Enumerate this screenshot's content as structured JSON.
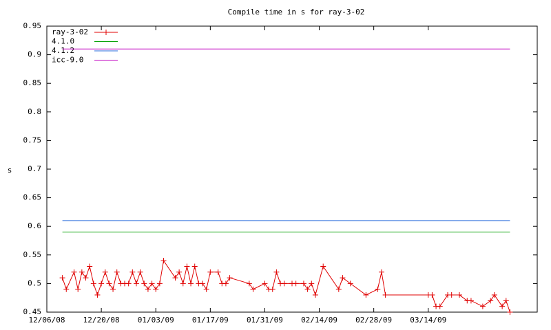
{
  "chart_data": {
    "type": "line",
    "title": "Compile time in s for ray-3-02",
    "y_label": "s",
    "xlim": [
      "12/06/08",
      "04/11/09"
    ],
    "xticks": [
      "12/06/08",
      "12/20/08",
      "01/03/09",
      "01/17/09",
      "01/31/09",
      "02/14/09",
      "02/28/09",
      "03/14/09"
    ],
    "ylim": [
      0.45,
      0.95
    ],
    "yticks": [
      0.45,
      0.5,
      0.55,
      0.6,
      0.65,
      0.7,
      0.75,
      0.8,
      0.85,
      0.9,
      0.95
    ],
    "legend": "top-left",
    "series": [
      {
        "name": "ray-3-02",
        "color": "#e00000",
        "marker": "plus",
        "x": [
          "12/10/08",
          "12/11/08",
          "12/13/08",
          "12/14/08",
          "12/15/08",
          "12/16/08",
          "12/17/08",
          "12/18/08",
          "12/19/08",
          "12/20/08",
          "12/21/08",
          "12/22/08",
          "12/23/08",
          "12/24/08",
          "12/25/08",
          "12/26/08",
          "12/27/08",
          "12/28/08",
          "12/29/08",
          "12/30/08",
          "12/31/08",
          "01/01/09",
          "01/02/09",
          "01/03/09",
          "01/04/09",
          "01/05/09",
          "01/08/09",
          "01/09/09",
          "01/10/09",
          "01/11/09",
          "01/12/09",
          "01/13/09",
          "01/14/09",
          "01/15/09",
          "01/16/09",
          "01/17/09",
          "01/19/09",
          "01/20/09",
          "01/21/09",
          "01/22/09",
          "01/27/09",
          "01/28/09",
          "01/31/09",
          "02/01/09",
          "02/02/09",
          "02/03/09",
          "02/04/09",
          "02/05/09",
          "02/07/09",
          "02/08/09",
          "02/10/09",
          "02/11/09",
          "02/12/09",
          "02/13/09",
          "02/15/09",
          "02/19/09",
          "02/20/09",
          "02/22/09",
          "02/26/09",
          "03/01/09",
          "03/02/09",
          "03/03/09",
          "03/14/09",
          "03/15/09",
          "03/16/09",
          "03/17/09",
          "03/19/09",
          "03/20/09",
          "03/22/09",
          "03/24/09",
          "03/25/09",
          "03/28/09",
          "03/30/09",
          "03/31/09",
          "04/02/09",
          "04/03/09",
          "04/04/09"
        ],
        "values": [
          0.51,
          0.49,
          0.52,
          0.49,
          0.52,
          0.51,
          0.53,
          0.5,
          0.48,
          0.5,
          0.52,
          0.5,
          0.49,
          0.52,
          0.5,
          0.5,
          0.5,
          0.52,
          0.5,
          0.52,
          0.5,
          0.49,
          0.5,
          0.49,
          0.5,
          0.54,
          0.51,
          0.52,
          0.5,
          0.53,
          0.5,
          0.53,
          0.5,
          0.5,
          0.49,
          0.52,
          0.52,
          0.5,
          0.5,
          0.51,
          0.5,
          0.49,
          0.5,
          0.49,
          0.49,
          0.52,
          0.5,
          0.5,
          0.5,
          0.5,
          0.5,
          0.49,
          0.5,
          0.48,
          0.53,
          0.49,
          0.51,
          0.5,
          0.48,
          0.49,
          0.52,
          0.48,
          0.48,
          0.48,
          0.46,
          0.46,
          0.48,
          0.48,
          0.48,
          0.47,
          0.47,
          0.46,
          0.47,
          0.48,
          0.46,
          0.47,
          0.45
        ]
      },
      {
        "name": "4.1.0",
        "color": "#00a000",
        "x": [
          "12/10/08",
          "04/04/09"
        ],
        "values": [
          0.59,
          0.59
        ]
      },
      {
        "name": "4.1.2",
        "color": "#2a6edc",
        "x": [
          "12/10/08",
          "04/04/09"
        ],
        "values": [
          0.61,
          0.61
        ]
      },
      {
        "name": "icc-9.0",
        "color": "#c000c0",
        "x": [
          "12/10/08",
          "04/04/09"
        ],
        "values": [
          0.91,
          0.91
        ]
      }
    ]
  }
}
